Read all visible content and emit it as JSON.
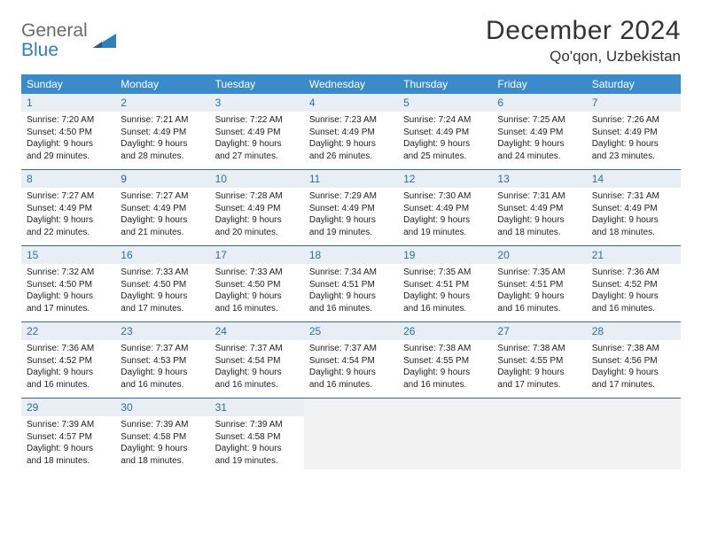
{
  "logo": {
    "line1": "General",
    "line2": "Blue"
  },
  "title": "December 2024",
  "location": "Qo'qon, Uzbekistan",
  "colors": {
    "header_bg": "#3b8aca",
    "header_text": "#ffffff",
    "daynum_bg": "#e8eef4",
    "daynum_text": "#2a6fa6",
    "row_border": "#2a6fa6",
    "body_text": "#222222",
    "logo_gray": "#6b6b6b",
    "logo_blue": "#2f7fba"
  },
  "weekdays": [
    "Sunday",
    "Monday",
    "Tuesday",
    "Wednesday",
    "Thursday",
    "Friday",
    "Saturday"
  ],
  "days": [
    {
      "n": "1",
      "sr": "7:20 AM",
      "ss": "4:50 PM",
      "dl": "9 hours and 29 minutes."
    },
    {
      "n": "2",
      "sr": "7:21 AM",
      "ss": "4:49 PM",
      "dl": "9 hours and 28 minutes."
    },
    {
      "n": "3",
      "sr": "7:22 AM",
      "ss": "4:49 PM",
      "dl": "9 hours and 27 minutes."
    },
    {
      "n": "4",
      "sr": "7:23 AM",
      "ss": "4:49 PM",
      "dl": "9 hours and 26 minutes."
    },
    {
      "n": "5",
      "sr": "7:24 AM",
      "ss": "4:49 PM",
      "dl": "9 hours and 25 minutes."
    },
    {
      "n": "6",
      "sr": "7:25 AM",
      "ss": "4:49 PM",
      "dl": "9 hours and 24 minutes."
    },
    {
      "n": "7",
      "sr": "7:26 AM",
      "ss": "4:49 PM",
      "dl": "9 hours and 23 minutes."
    },
    {
      "n": "8",
      "sr": "7:27 AM",
      "ss": "4:49 PM",
      "dl": "9 hours and 22 minutes."
    },
    {
      "n": "9",
      "sr": "7:27 AM",
      "ss": "4:49 PM",
      "dl": "9 hours and 21 minutes."
    },
    {
      "n": "10",
      "sr": "7:28 AM",
      "ss": "4:49 PM",
      "dl": "9 hours and 20 minutes."
    },
    {
      "n": "11",
      "sr": "7:29 AM",
      "ss": "4:49 PM",
      "dl": "9 hours and 19 minutes."
    },
    {
      "n": "12",
      "sr": "7:30 AM",
      "ss": "4:49 PM",
      "dl": "9 hours and 19 minutes."
    },
    {
      "n": "13",
      "sr": "7:31 AM",
      "ss": "4:49 PM",
      "dl": "9 hours and 18 minutes."
    },
    {
      "n": "14",
      "sr": "7:31 AM",
      "ss": "4:49 PM",
      "dl": "9 hours and 18 minutes."
    },
    {
      "n": "15",
      "sr": "7:32 AM",
      "ss": "4:50 PM",
      "dl": "9 hours and 17 minutes."
    },
    {
      "n": "16",
      "sr": "7:33 AM",
      "ss": "4:50 PM",
      "dl": "9 hours and 17 minutes."
    },
    {
      "n": "17",
      "sr": "7:33 AM",
      "ss": "4:50 PM",
      "dl": "9 hours and 16 minutes."
    },
    {
      "n": "18",
      "sr": "7:34 AM",
      "ss": "4:51 PM",
      "dl": "9 hours and 16 minutes."
    },
    {
      "n": "19",
      "sr": "7:35 AM",
      "ss": "4:51 PM",
      "dl": "9 hours and 16 minutes."
    },
    {
      "n": "20",
      "sr": "7:35 AM",
      "ss": "4:51 PM",
      "dl": "9 hours and 16 minutes."
    },
    {
      "n": "21",
      "sr": "7:36 AM",
      "ss": "4:52 PM",
      "dl": "9 hours and 16 minutes."
    },
    {
      "n": "22",
      "sr": "7:36 AM",
      "ss": "4:52 PM",
      "dl": "9 hours and 16 minutes."
    },
    {
      "n": "23",
      "sr": "7:37 AM",
      "ss": "4:53 PM",
      "dl": "9 hours and 16 minutes."
    },
    {
      "n": "24",
      "sr": "7:37 AM",
      "ss": "4:54 PM",
      "dl": "9 hours and 16 minutes."
    },
    {
      "n": "25",
      "sr": "7:37 AM",
      "ss": "4:54 PM",
      "dl": "9 hours and 16 minutes."
    },
    {
      "n": "26",
      "sr": "7:38 AM",
      "ss": "4:55 PM",
      "dl": "9 hours and 16 minutes."
    },
    {
      "n": "27",
      "sr": "7:38 AM",
      "ss": "4:55 PM",
      "dl": "9 hours and 17 minutes."
    },
    {
      "n": "28",
      "sr": "7:38 AM",
      "ss": "4:56 PM",
      "dl": "9 hours and 17 minutes."
    },
    {
      "n": "29",
      "sr": "7:39 AM",
      "ss": "4:57 PM",
      "dl": "9 hours and 18 minutes."
    },
    {
      "n": "30",
      "sr": "7:39 AM",
      "ss": "4:58 PM",
      "dl": "9 hours and 18 minutes."
    },
    {
      "n": "31",
      "sr": "7:39 AM",
      "ss": "4:58 PM",
      "dl": "9 hours and 19 minutes."
    }
  ],
  "labels": {
    "sunrise": "Sunrise:",
    "sunset": "Sunset:",
    "daylight": "Daylight:"
  }
}
